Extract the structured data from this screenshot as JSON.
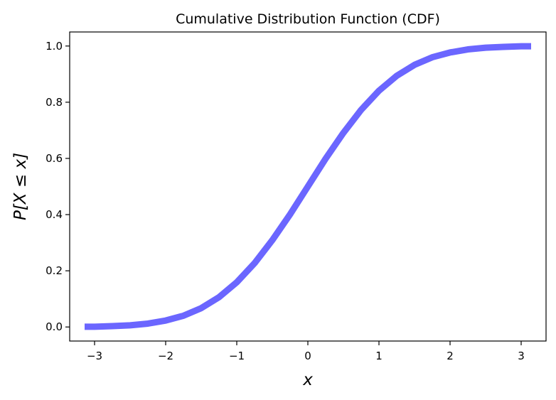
{
  "chart_data": {
    "type": "line",
    "title": "Cumulative Distribution Function (CDF)",
    "xlabel": "x",
    "ylabel": "P[X ≤ x]",
    "xlim": [
      -3.35,
      3.35
    ],
    "ylim": [
      -0.05,
      1.05
    ],
    "x_ticks": [
      {
        "value": -3,
        "label": "−3"
      },
      {
        "value": -2,
        "label": "−2"
      },
      {
        "value": -1,
        "label": "−1"
      },
      {
        "value": 0,
        "label": "0"
      },
      {
        "value": 1,
        "label": "1"
      },
      {
        "value": 2,
        "label": "2"
      },
      {
        "value": 3,
        "label": "3"
      }
    ],
    "y_ticks": [
      {
        "value": 0.0,
        "label": "0.0"
      },
      {
        "value": 0.2,
        "label": "0.2"
      },
      {
        "value": 0.4,
        "label": "0.4"
      },
      {
        "value": 0.6,
        "label": "0.6"
      },
      {
        "value": 0.8,
        "label": "0.8"
      },
      {
        "value": 1.0,
        "label": "1.0"
      }
    ],
    "grid": false,
    "series": [
      {
        "color": "#6b66ff",
        "x": [
          -3.14,
          -3.0,
          -2.75,
          -2.5,
          -2.25,
          -2.0,
          -1.75,
          -1.5,
          -1.25,
          -1.0,
          -0.75,
          -0.5,
          -0.25,
          0.0,
          0.25,
          0.5,
          0.75,
          1.0,
          1.25,
          1.5,
          1.75,
          2.0,
          2.25,
          2.5,
          2.75,
          3.0,
          3.14
        ],
        "y": [
          0.001,
          0.001,
          0.003,
          0.006,
          0.012,
          0.023,
          0.04,
          0.067,
          0.106,
          0.159,
          0.227,
          0.309,
          0.401,
          0.5,
          0.599,
          0.691,
          0.773,
          0.841,
          0.894,
          0.933,
          0.96,
          0.977,
          0.988,
          0.994,
          0.997,
          0.999,
          0.999
        ]
      }
    ]
  }
}
